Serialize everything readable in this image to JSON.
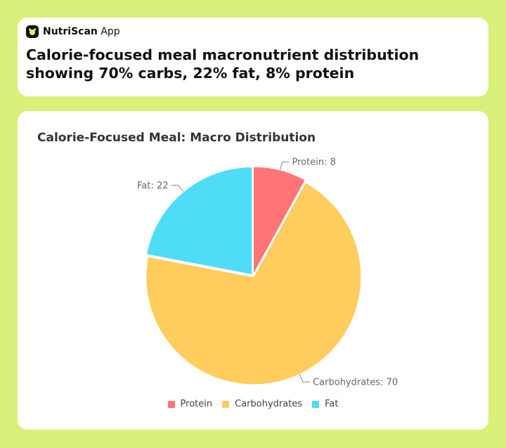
{
  "header": {
    "brand_bold": "NutriScan",
    "brand_rest": " App",
    "headline": "Calorie-focused meal macronutrient distribution showing 70% carbs, 22% fat, 8% protein"
  },
  "chart_data": {
    "type": "pie",
    "title": "Calorie-Focused Meal: Macro Distribution",
    "legend_position": "bottom",
    "categories": [
      "Protein",
      "Carbohydrates",
      "Fat"
    ],
    "values": [
      8,
      70,
      22
    ],
    "colors": [
      "#ff7474",
      "#ffcd5e",
      "#4fdcf6"
    ],
    "labels": [
      "Protein: 8",
      "Carbohydrates: 70",
      "Fat: 22"
    ]
  }
}
